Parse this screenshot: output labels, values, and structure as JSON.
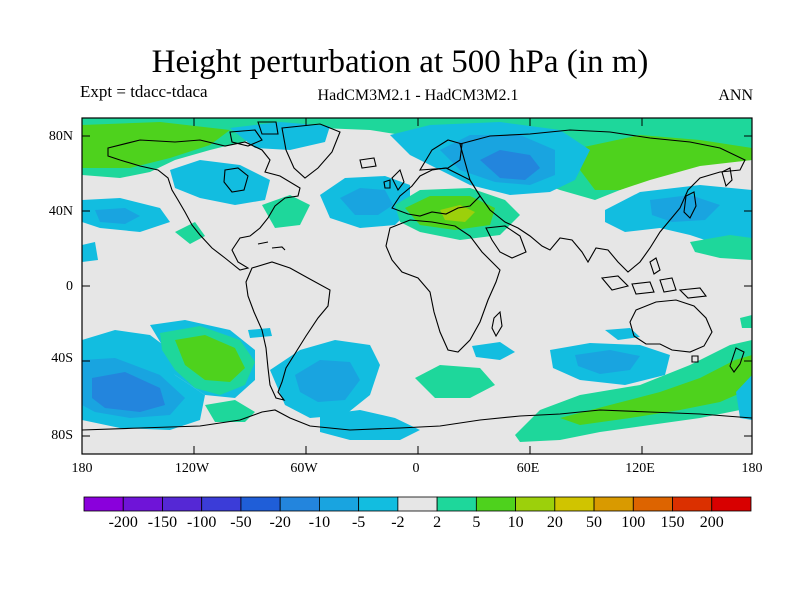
{
  "title": "Height perturbation at 500 hPa (in m)",
  "left_label": "Expt = tdacc-tdaca",
  "center_label": "HadCM3M2.1 - HadCM3M2.1",
  "right_label": "ANN",
  "lat_ticks": [
    "80N",
    "40N",
    "0",
    "40S",
    "80S"
  ],
  "lon_ticks": [
    "180",
    "120W",
    "60W",
    "0",
    "60E",
    "120E",
    "180"
  ],
  "colorbar": {
    "labels": [
      "-200",
      "-150",
      "-100",
      "-50",
      "-20",
      "-10",
      "-5",
      "-2",
      "2",
      "5",
      "10",
      "20",
      "50",
      "100",
      "150",
      "200"
    ],
    "colors": [
      "#8a00dc",
      "#6f14d8",
      "#5528d5",
      "#3b3cd8",
      "#1f5ed8",
      "#2385dd",
      "#19a4e0",
      "#12bde0",
      "#e6e6e6",
      "#1ed79b",
      "#4ed21d",
      "#9cd00b",
      "#d0c400",
      "#d99a00",
      "#dd6400",
      "#db3000",
      "#d80000"
    ]
  },
  "field_colors": {
    "background": "#e6e6e6",
    "neg_light": "#12bde0",
    "neg_mid": "#19a4e0",
    "neg_strong": "#2385dd",
    "pos_light": "#1ed79b",
    "pos_mid": "#4ed21d",
    "pos_strong": "#9cd00b"
  }
}
